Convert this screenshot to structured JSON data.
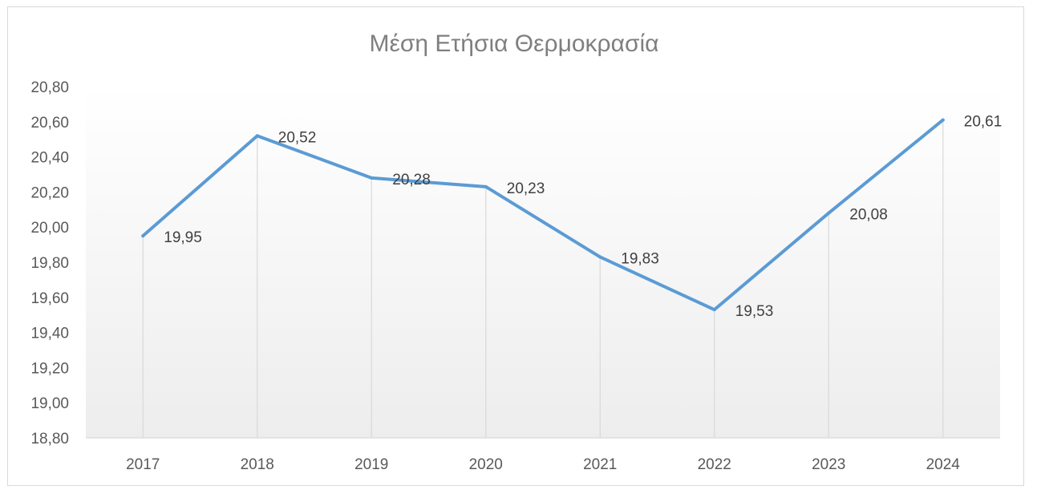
{
  "chart_data": {
    "type": "line",
    "title": "Μέση Ετήσια Θερμοκρασία",
    "categories": [
      "2017",
      "2018",
      "2019",
      "2020",
      "2021",
      "2022",
      "2023",
      "2024"
    ],
    "series": [
      {
        "values": [
          19.95,
          20.52,
          20.28,
          20.23,
          19.83,
          19.53,
          20.08,
          20.61
        ],
        "data_labels": [
          "19,95",
          "20,52",
          "20,28",
          "20,23",
          "19,83",
          "19,53",
          "20,08",
          "20,61"
        ],
        "color": "#5b9bd5"
      }
    ],
    "ylim": [
      18.8,
      20.8
    ],
    "yticks": [
      18.8,
      19.0,
      19.2,
      19.4,
      19.6,
      19.8,
      20.0,
      20.2,
      20.4,
      20.6,
      20.8
    ],
    "ytick_labels": [
      "18,80",
      "19,00",
      "19,20",
      "19,40",
      "19,60",
      "19,80",
      "20,00",
      "20,20",
      "20,40",
      "20,60",
      "20,80"
    ],
    "xlabel": "",
    "ylabel": "",
    "grid": "vertical drop lines",
    "legend": "none",
    "background_gradient": [
      "#ffffff",
      "#f0f0f0"
    ]
  }
}
